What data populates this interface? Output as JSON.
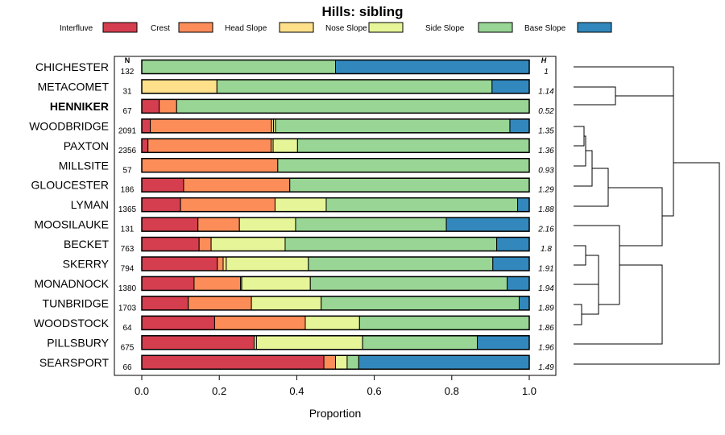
{
  "chart_data": {
    "type": "bar",
    "orientation": "horizontal",
    "stacked": true,
    "title": "Hills: sibling",
    "xlabel": "Proportion",
    "xlim": [
      0,
      1
    ],
    "xticks": [
      "0.0",
      "0.2",
      "0.4",
      "0.6",
      "0.8",
      "1.0"
    ],
    "n_header": "N",
    "h_header": "H",
    "legend": [
      {
        "name": "Interfluve",
        "color": "#D53E4F"
      },
      {
        "name": "Crest",
        "color": "#FC8D59"
      },
      {
        "name": "Head Slope",
        "color": "#FEE08B"
      },
      {
        "name": "Nose Slope",
        "color": "#E6F598"
      },
      {
        "name": "Side Slope",
        "color": "#99D594"
      },
      {
        "name": "Base Slope",
        "color": "#3288BD"
      }
    ],
    "series_order": [
      "Interfluve",
      "Crest",
      "Head Slope",
      "Nose Slope",
      "Side Slope",
      "Base Slope"
    ],
    "rows": [
      {
        "name": "CHICHESTER",
        "n": "132",
        "h": "1",
        "bold": false,
        "values": [
          0,
          0,
          0,
          0,
          0.5,
          0.5
        ]
      },
      {
        "name": "METACOMET",
        "n": "31",
        "h": "1.14",
        "bold": false,
        "values": [
          0,
          0,
          0.194,
          0,
          0.71,
          0.096
        ]
      },
      {
        "name": "HENNIKER",
        "n": "67",
        "h": "0.52",
        "bold": true,
        "values": [
          0.045,
          0.045,
          0,
          0,
          0.91,
          0
        ]
      },
      {
        "name": "WOODBRIDGE",
        "n": "2091",
        "h": "1.35",
        "bold": false,
        "values": [
          0.022,
          0.313,
          0.005,
          0.005,
          0.605,
          0.05
        ]
      },
      {
        "name": "PAXTON",
        "n": "2356",
        "h": "1.36",
        "bold": false,
        "values": [
          0.016,
          0.318,
          0.005,
          0.063,
          0.598,
          0
        ]
      },
      {
        "name": "MILLSITE",
        "n": "57",
        "h": "0.93",
        "bold": false,
        "values": [
          0,
          0.351,
          0,
          0,
          0.649,
          0
        ]
      },
      {
        "name": "GLOUCESTER",
        "n": "186",
        "h": "1.29",
        "bold": false,
        "values": [
          0.108,
          0.274,
          0,
          0,
          0.618,
          0
        ]
      },
      {
        "name": "LYMAN",
        "n": "1365",
        "h": "1.88",
        "bold": false,
        "values": [
          0.1,
          0.244,
          0,
          0.132,
          0.494,
          0.03
        ]
      },
      {
        "name": "MOOSILAUKE",
        "n": "131",
        "h": "2.16",
        "bold": false,
        "values": [
          0.145,
          0.107,
          0,
          0.145,
          0.389,
          0.214
        ]
      },
      {
        "name": "BECKET",
        "n": "763",
        "h": "1.8",
        "bold": false,
        "values": [
          0.148,
          0.031,
          0,
          0.191,
          0.546,
          0.084
        ]
      },
      {
        "name": "SKERRY",
        "n": "794",
        "h": "1.91",
        "bold": false,
        "values": [
          0.195,
          0.015,
          0.008,
          0.212,
          0.476,
          0.094
        ]
      },
      {
        "name": "MONADNOCK",
        "n": "1380",
        "h": "1.94",
        "bold": false,
        "values": [
          0.135,
          0.12,
          0.003,
          0.177,
          0.508,
          0.057
        ]
      },
      {
        "name": "TUNBRIDGE",
        "n": "1703",
        "h": "1.89",
        "bold": false,
        "values": [
          0.12,
          0.163,
          0,
          0.18,
          0.511,
          0.026
        ]
      },
      {
        "name": "WOODSTOCK",
        "n": "64",
        "h": "1.86",
        "bold": false,
        "values": [
          0.188,
          0.234,
          0,
          0.14,
          0.438,
          0
        ]
      },
      {
        "name": "PILLSBURY",
        "n": "675",
        "h": "1.96",
        "bold": false,
        "values": [
          0.29,
          0,
          0.006,
          0.274,
          0.296,
          0.134
        ]
      },
      {
        "name": "SEARSPORT",
        "n": "66",
        "h": "1.49",
        "bold": false,
        "values": [
          0.47,
          0.03,
          0,
          0.03,
          0.03,
          0.44
        ]
      }
    ]
  }
}
